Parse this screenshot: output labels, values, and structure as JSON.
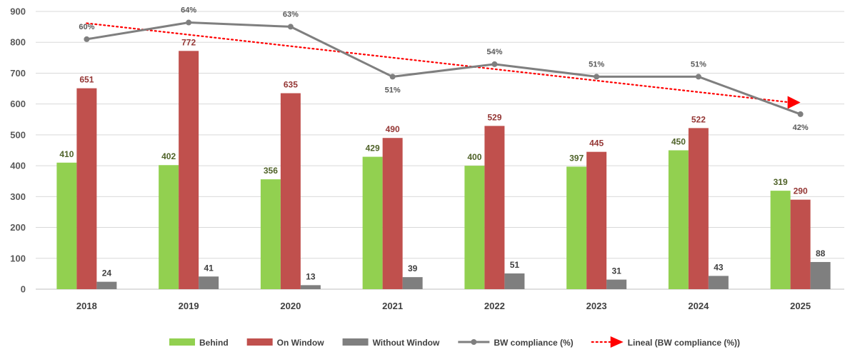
{
  "chart_data": {
    "type": "bar",
    "categories": [
      "2018",
      "2019",
      "2020",
      "2021",
      "2022",
      "2023",
      "2024",
      "2025"
    ],
    "ylim": [
      0,
      900
    ],
    "yticks": [
      0,
      100,
      200,
      300,
      400,
      500,
      600,
      700,
      800,
      900
    ],
    "grid": true,
    "legend_position": "bottom",
    "series": [
      {
        "name": "Behind",
        "type": "bar",
        "color": "#92d050",
        "label_color": "#4f6228",
        "values": [
          410,
          402,
          356,
          429,
          400,
          397,
          450,
          319
        ]
      },
      {
        "name": "On Window",
        "type": "bar",
        "color": "#c0504d",
        "label_color": "#943634",
        "values": [
          651,
          772,
          635,
          490,
          529,
          445,
          522,
          290
        ]
      },
      {
        "name": "Without Window",
        "type": "bar",
        "color": "#7f7f7f",
        "label_color": "#404040",
        "values": [
          24,
          41,
          13,
          39,
          51,
          31,
          43,
          88
        ]
      },
      {
        "name": "BW compliance (%)",
        "type": "line",
        "color": "#7f7f7f",
        "values": [
          60,
          64,
          63,
          51,
          54,
          51,
          51,
          42
        ],
        "labels": [
          "60%",
          "64%",
          "63%",
          "51%",
          "54%",
          "51%",
          "51%",
          "42%"
        ],
        "label_side": [
          "above",
          "above",
          "above",
          "below",
          "above",
          "above",
          "above",
          "below"
        ]
      },
      {
        "name": "Lineal (BW compliance (%))",
        "type": "trendline",
        "color": "#ff0000",
        "style": "dotted",
        "end_marker": "arrow"
      }
    ]
  }
}
